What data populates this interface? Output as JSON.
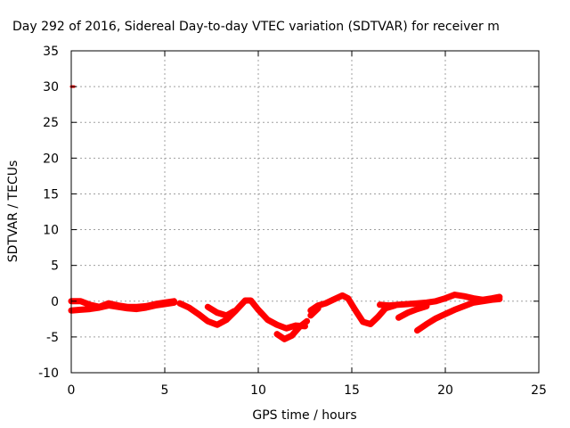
{
  "chart_data": {
    "type": "line",
    "title": "Day 292 of 2016, Sidereal Day-to-day VTEC variation (SDTVAR) for receiver m",
    "xlabel": "GPS time / hours",
    "ylabel": "SDTVAR / TECUs",
    "xlim": [
      0,
      25
    ],
    "ylim": [
      -10,
      35
    ],
    "xticks": [
      0,
      5,
      10,
      15,
      20,
      25
    ],
    "yticks": [
      -10,
      -5,
      0,
      5,
      10,
      15,
      20,
      25,
      30,
      35
    ],
    "grid": true,
    "series_color": "#ff0000",
    "series": [
      {
        "x": [
          0.0,
          0.15
        ],
        "y": [
          30.0,
          30.0
        ]
      },
      {
        "x": [
          0.0,
          0.5,
          1.0,
          1.5,
          2.0,
          2.5,
          3.0,
          3.5,
          4.0,
          4.5,
          5.0,
          5.5
        ],
        "y": [
          0.0,
          0.0,
          -0.5,
          -0.8,
          -0.3,
          -0.6,
          -0.8,
          -0.8,
          -0.7,
          -0.4,
          -0.2,
          0.0
        ]
      },
      {
        "x": [
          0.0,
          0.5,
          1.0,
          1.5,
          2.0,
          2.5,
          3.0,
          3.5,
          4.0,
          4.5,
          5.0,
          5.5
        ],
        "y": [
          -1.3,
          -1.2,
          -1.1,
          -0.9,
          -0.6,
          -0.8,
          -1.0,
          -1.1,
          -0.9,
          -0.6,
          -0.4,
          -0.2
        ]
      },
      {
        "x": [
          5.8,
          6.3,
          6.8,
          7.3,
          7.8,
          8.3,
          8.8,
          9.3,
          9.6,
          10.0,
          10.5,
          11.0,
          11.5,
          12.0,
          12.5
        ],
        "y": [
          -0.3,
          -0.9,
          -1.8,
          -2.8,
          -3.3,
          -2.6,
          -1.3,
          0.1,
          0.1,
          -1.2,
          -2.6,
          -3.3,
          -3.8,
          -3.4,
          -3.5
        ]
      },
      {
        "x": [
          7.3,
          7.8,
          8.3,
          8.7
        ],
        "y": [
          -0.8,
          -1.6,
          -2.0,
          -1.4
        ]
      },
      {
        "x": [
          11.0,
          11.4,
          11.8,
          12.2,
          12.6
        ],
        "y": [
          -4.6,
          -5.3,
          -4.8,
          -3.6,
          -2.8
        ]
      },
      {
        "x": [
          12.8,
          13.2,
          13.6,
          14.0,
          14.5,
          14.8,
          15.2,
          15.6,
          16.0,
          16.4,
          16.8,
          17.3
        ],
        "y": [
          -1.3,
          -0.6,
          -0.3,
          0.2,
          0.8,
          0.4,
          -1.3,
          -2.9,
          -3.2,
          -2.2,
          -1.0,
          -0.6
        ]
      },
      {
        "x": [
          12.8,
          13.0,
          13.2
        ],
        "y": [
          -2.0,
          -1.5,
          -1.0
        ]
      },
      {
        "x": [
          16.5,
          17.0,
          17.5,
          18.0,
          18.5,
          19.0,
          19.5,
          20.0,
          20.5,
          21.0,
          21.5,
          22.0,
          22.5,
          22.9
        ],
        "y": [
          -0.5,
          -0.6,
          -0.5,
          -0.4,
          -0.3,
          -0.2,
          0.0,
          0.4,
          0.9,
          0.7,
          0.4,
          0.2,
          0.4,
          0.6
        ]
      },
      {
        "x": [
          17.5,
          18.0,
          18.5,
          19.0
        ],
        "y": [
          -2.3,
          -1.6,
          -1.1,
          -0.7
        ]
      },
      {
        "x": [
          18.5,
          19.0,
          19.5,
          20.0,
          20.5,
          21.0,
          21.5,
          22.0,
          22.5,
          22.9
        ],
        "y": [
          -4.1,
          -3.2,
          -2.4,
          -1.8,
          -1.2,
          -0.7,
          -0.2,
          0.0,
          0.2,
          0.3
        ]
      }
    ]
  }
}
